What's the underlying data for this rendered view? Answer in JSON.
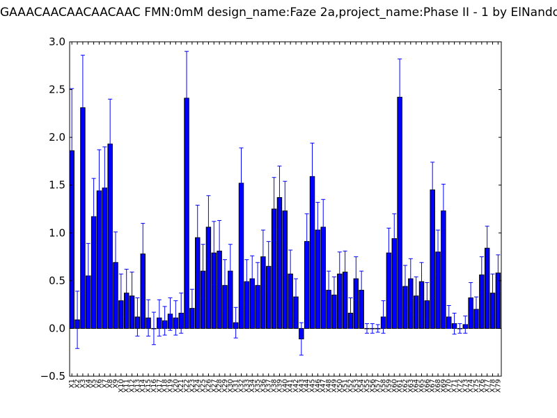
{
  "chart_data": {
    "type": "bar",
    "title": "GAAACAACAACAACAAC  FMN:0mM  design_name:Faze 2a,project_name:Phase II - 1 by ElNando",
    "xlabel": "",
    "ylabel": "",
    "ylim": [
      -0.5,
      3.0
    ],
    "yticks": [
      "3.0",
      "2.5",
      "2.0",
      "1.5",
      "1.0",
      "0.5",
      "0.0",
      "−0.5"
    ],
    "ytick_values": [
      3.0,
      2.5,
      2.0,
      1.5,
      1.0,
      0.5,
      0.0,
      -0.5
    ],
    "categories": [
      "X1",
      "X2",
      "X3",
      "X4",
      "X5",
      "X6",
      "X7",
      "X8",
      "X9",
      "X10",
      "X11",
      "X12",
      "X13",
      "X14",
      "X15",
      "X16",
      "X17",
      "X18",
      "X19",
      "X20",
      "X21",
      "X22",
      "X23",
      "X24",
      "X25",
      "X26",
      "X27",
      "X28",
      "X29",
      "X30",
      "X31",
      "X32",
      "X33",
      "X34",
      "X35",
      "X36",
      "X37",
      "X38",
      "X39",
      "X40",
      "X41",
      "X42",
      "X43",
      "X44",
      "X45",
      "X46",
      "X47",
      "X48",
      "X49",
      "X50",
      "X51",
      "X52",
      "X53",
      "X54",
      "X55",
      "X56",
      "X57",
      "X58",
      "X59",
      "X60",
      "X61",
      "X62",
      "X63",
      "X64",
      "X65",
      "X66",
      "X67",
      "X68",
      "X69",
      "X70",
      "X71",
      "X72",
      "X73",
      "X74",
      "X75",
      "X76",
      "X77",
      "X78",
      "X79"
    ],
    "values": [
      1.86,
      0.09,
      2.31,
      0.55,
      1.17,
      1.44,
      1.47,
      1.93,
      0.69,
      0.29,
      0.37,
      0.34,
      0.12,
      0.78,
      0.11,
      0.0,
      0.11,
      0.08,
      0.15,
      0.11,
      0.16,
      2.41,
      0.21,
      0.95,
      0.6,
      1.06,
      0.79,
      0.81,
      0.45,
      0.6,
      0.06,
      1.52,
      0.49,
      0.52,
      0.45,
      0.75,
      0.65,
      1.25,
      1.37,
      1.23,
      0.57,
      0.33,
      -0.11,
      0.91,
      1.59,
      1.03,
      1.06,
      0.4,
      0.35,
      0.57,
      0.59,
      0.16,
      0.52,
      0.4,
      0.0,
      0.0,
      0.0,
      0.12,
      0.79,
      0.94,
      2.42,
      0.44,
      0.52,
      0.34,
      0.49,
      0.29,
      1.45,
      0.8,
      1.23,
      0.12,
      0.05,
      0.0,
      0.04,
      0.32,
      0.2,
      0.56,
      0.84,
      0.37,
      0.58
    ],
    "errors": [
      0.65,
      0.3,
      0.55,
      0.34,
      0.4,
      0.43,
      0.43,
      0.47,
      0.32,
      0.28,
      0.25,
      0.25,
      0.2,
      0.32,
      0.19,
      0.17,
      0.19,
      0.15,
      0.17,
      0.18,
      0.21,
      0.49,
      0.2,
      0.34,
      0.28,
      0.33,
      0.33,
      0.32,
      0.27,
      0.28,
      0.16,
      0.37,
      0.23,
      0.24,
      0.24,
      0.28,
      0.26,
      0.33,
      0.33,
      0.31,
      0.25,
      0.19,
      0.17,
      0.29,
      0.35,
      0.29,
      0.29,
      0.2,
      0.19,
      0.23,
      0.22,
      0.16,
      0.23,
      0.2,
      0.05,
      0.05,
      0.04,
      0.17,
      0.26,
      0.26,
      0.4,
      0.22,
      0.21,
      0.2,
      0.2,
      0.19,
      0.29,
      0.23,
      0.28,
      0.12,
      0.11,
      0.05,
      0.09,
      0.16,
      0.13,
      0.19,
      0.23,
      0.2,
      0.19
    ],
    "grid": false,
    "legend": "none",
    "colors": {
      "bar_fill": "#0000ff",
      "bar_edge": "#000000",
      "error_bar": "#0000ff",
      "axes": "#000000"
    }
  }
}
